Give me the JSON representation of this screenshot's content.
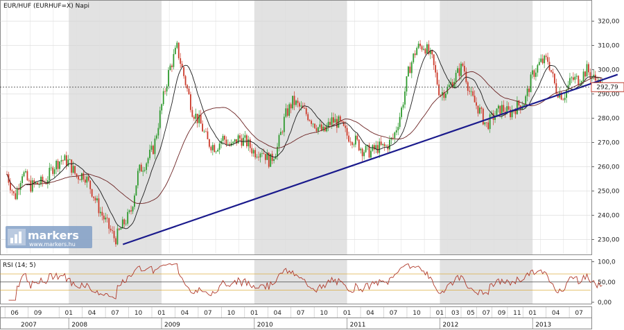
{
  "chart_data": [
    {
      "type": "candlestick",
      "title": "EUR/HUF (EURHUF=X)  Napi",
      "y_ticks": [
        "230,00",
        "240,00",
        "250,00",
        "260,00",
        "270,00",
        "280,00",
        "290,00",
        "300,00",
        "310,00",
        "320,00"
      ],
      "ylim": [
        225,
        325
      ],
      "last_price_label": "292,79",
      "last_price": 292.79,
      "x_month_labels": [
        "06",
        "09",
        "01",
        "04",
        "07",
        "10",
        "01",
        "04",
        "07",
        "10",
        "01",
        "04",
        "07",
        "10",
        "01",
        "04",
        "07",
        "10",
        "01",
        "03",
        "05",
        "07",
        "09",
        "11",
        "01",
        "04",
        "07"
      ],
      "x_year_labels": [
        "2007",
        "2008",
        "2009",
        "2010",
        "2011",
        "2012",
        "2013"
      ],
      "shaded_years": [
        "2008",
        "2010",
        "2012"
      ],
      "price_path": [
        {
          "x": "2007-05",
          "y": 257
        },
        {
          "x": "2007-06",
          "y": 247
        },
        {
          "x": "2007-07",
          "y": 258
        },
        {
          "x": "2007-08",
          "y": 252
        },
        {
          "x": "2007-10",
          "y": 254
        },
        {
          "x": "2007-11",
          "y": 260
        },
        {
          "x": "2007-12",
          "y": 263
        },
        {
          "x": "2008-01",
          "y": 262
        },
        {
          "x": "2008-02",
          "y": 256
        },
        {
          "x": "2008-03",
          "y": 257
        },
        {
          "x": "2008-04",
          "y": 250
        },
        {
          "x": "2008-05",
          "y": 242
        },
        {
          "x": "2008-06",
          "y": 236
        },
        {
          "x": "2008-07",
          "y": 230
        },
        {
          "x": "2008-08",
          "y": 236
        },
        {
          "x": "2008-09",
          "y": 241
        },
        {
          "x": "2008-10",
          "y": 258
        },
        {
          "x": "2008-11",
          "y": 262
        },
        {
          "x": "2008-12",
          "y": 268
        },
        {
          "x": "2009-01",
          "y": 285
        },
        {
          "x": "2009-02",
          "y": 300
        },
        {
          "x": "2009-03",
          "y": 309
        },
        {
          "x": "2009-04",
          "y": 296
        },
        {
          "x": "2009-05",
          "y": 283
        },
        {
          "x": "2009-06",
          "y": 278
        },
        {
          "x": "2009-07",
          "y": 270
        },
        {
          "x": "2009-08",
          "y": 268
        },
        {
          "x": "2009-09",
          "y": 272
        },
        {
          "x": "2009-10",
          "y": 268
        },
        {
          "x": "2009-11",
          "y": 272
        },
        {
          "x": "2009-12",
          "y": 270
        },
        {
          "x": "2010-01",
          "y": 266
        },
        {
          "x": "2010-02",
          "y": 267
        },
        {
          "x": "2010-03",
          "y": 262
        },
        {
          "x": "2010-04",
          "y": 268
        },
        {
          "x": "2010-05",
          "y": 281
        },
        {
          "x": "2010-06",
          "y": 287
        },
        {
          "x": "2010-07",
          "y": 284
        },
        {
          "x": "2010-08",
          "y": 281
        },
        {
          "x": "2010-09",
          "y": 277
        },
        {
          "x": "2010-10",
          "y": 274
        },
        {
          "x": "2010-11",
          "y": 279
        },
        {
          "x": "2010-12",
          "y": 278
        },
        {
          "x": "2011-01",
          "y": 273
        },
        {
          "x": "2011-02",
          "y": 271
        },
        {
          "x": "2011-03",
          "y": 267
        },
        {
          "x": "2011-04",
          "y": 266
        },
        {
          "x": "2011-05",
          "y": 268
        },
        {
          "x": "2011-06",
          "y": 268
        },
        {
          "x": "2011-07",
          "y": 272
        },
        {
          "x": "2011-08",
          "y": 283
        },
        {
          "x": "2011-09",
          "y": 300
        },
        {
          "x": "2011-10",
          "y": 309
        },
        {
          "x": "2011-11",
          "y": 310
        },
        {
          "x": "2011-12",
          "y": 304
        },
        {
          "x": "2012-01",
          "y": 290
        },
        {
          "x": "2012-02",
          "y": 292
        },
        {
          "x": "2012-03",
          "y": 297
        },
        {
          "x": "2012-04",
          "y": 302
        },
        {
          "x": "2012-05",
          "y": 289
        },
        {
          "x": "2012-06",
          "y": 284
        },
        {
          "x": "2012-07",
          "y": 277
        },
        {
          "x": "2012-08",
          "y": 281
        },
        {
          "x": "2012-09",
          "y": 284
        },
        {
          "x": "2012-10",
          "y": 282
        },
        {
          "x": "2012-11",
          "y": 285
        },
        {
          "x": "2012-12",
          "y": 287
        },
        {
          "x": "2013-01",
          "y": 298
        },
        {
          "x": "2013-02",
          "y": 303
        },
        {
          "x": "2013-03",
          "y": 304
        },
        {
          "x": "2013-04",
          "y": 292
        },
        {
          "x": "2013-05",
          "y": 289
        },
        {
          "x": "2013-06",
          "y": 296
        },
        {
          "x": "2013-07",
          "y": 296
        },
        {
          "x": "2013-08",
          "y": 300
        },
        {
          "x": "2013-09",
          "y": 296
        },
        {
          "x": "2013-10",
          "y": 292.79
        }
      ],
      "trendline": {
        "start": {
          "x": "2008-08",
          "y": 228
        },
        "end": {
          "x": "2013-12",
          "y": 298
        }
      },
      "moving_averages": [
        "short",
        "long"
      ],
      "colors": {
        "up": "#2e9a2e",
        "down": "#cc3a2a",
        "ma_short": "#1a1a1a",
        "ma_long": "#6b2222",
        "trendline": "#1a1a8c",
        "shade": "#e2e2e2"
      }
    },
    {
      "type": "line",
      "title": "RSI (14; 5)",
      "y_ticks": [
        "0,00",
        "50,00",
        "100,0"
      ],
      "ylim": [
        0,
        100
      ],
      "reference_lines": [
        30,
        50,
        70
      ],
      "colors": {
        "line": "#b03a2a",
        "reference": "#d8a020"
      }
    }
  ],
  "watermark": {
    "brand": "markers",
    "url": "www.markers.hu"
  }
}
